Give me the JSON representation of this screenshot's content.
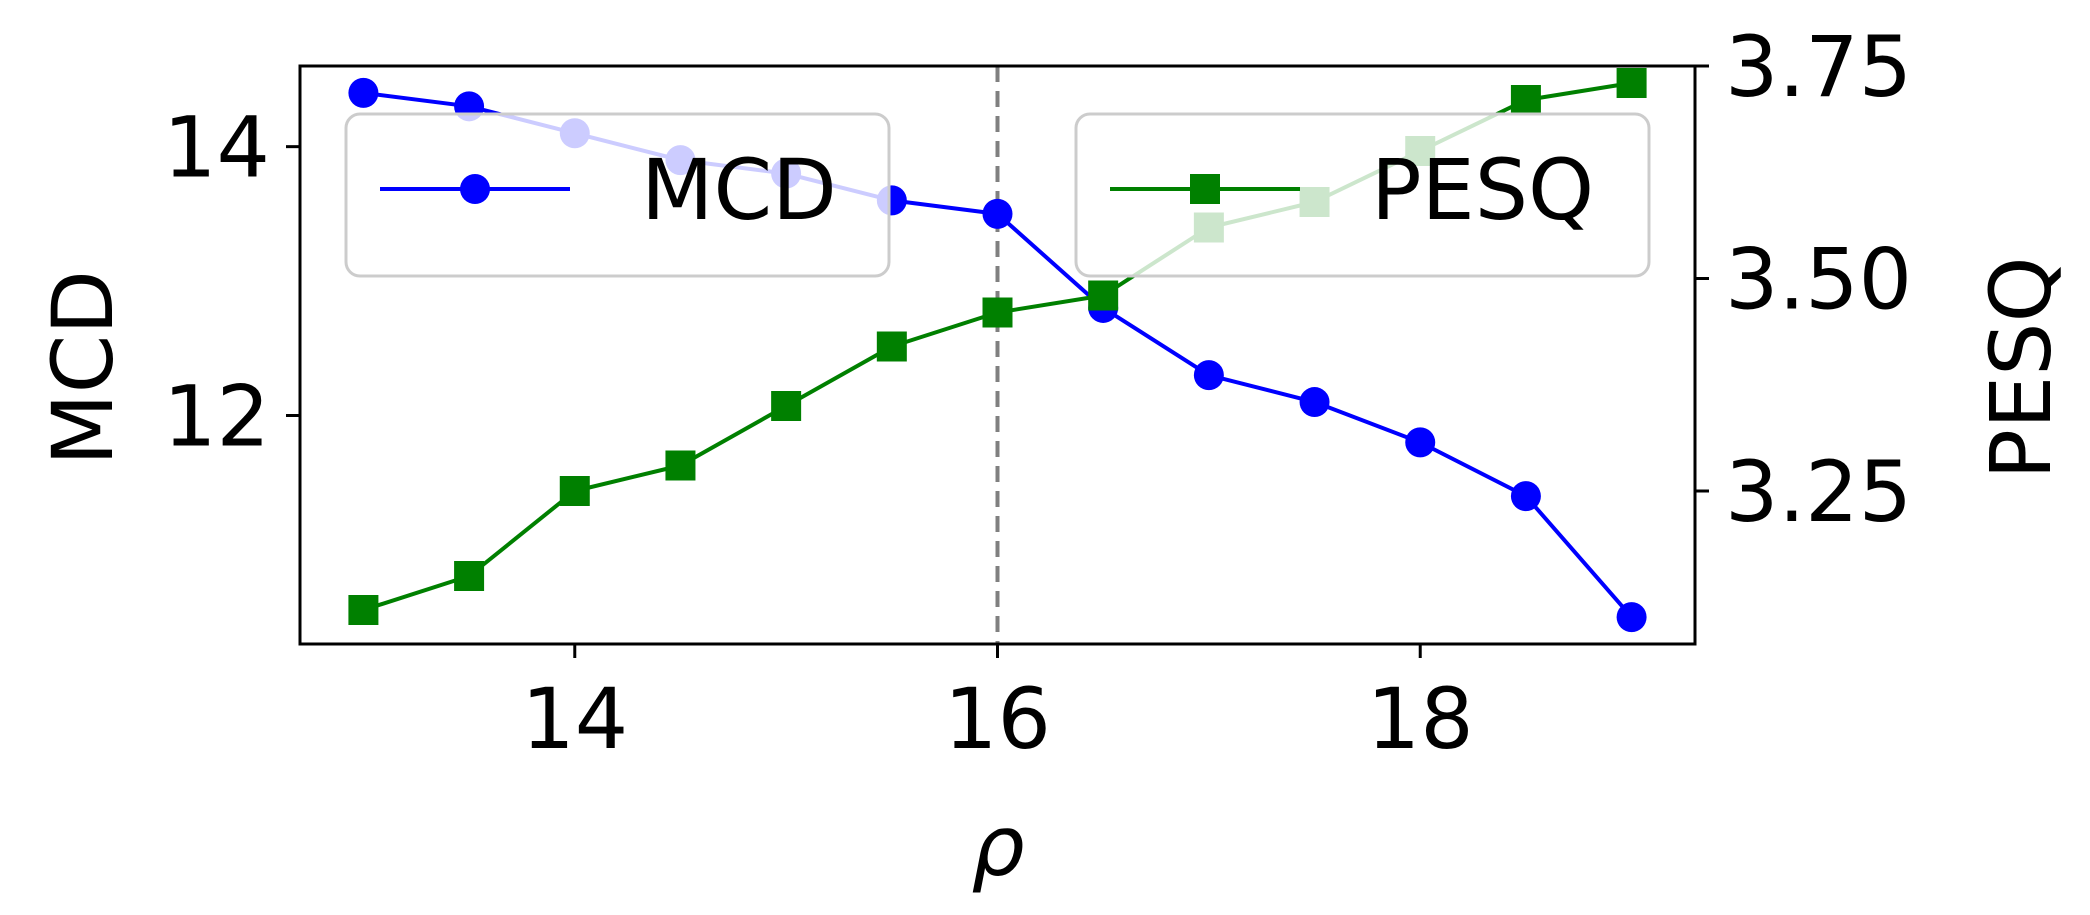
{
  "chart_data": {
    "type": "line",
    "x": [
      13,
      13.5,
      14,
      14.5,
      15,
      15.5,
      16,
      16.5,
      17,
      17.5,
      18,
      18.5,
      19
    ],
    "series": [
      {
        "name": "MCD",
        "axis": "left",
        "color": "#0000ff",
        "marker": "circle",
        "values": [
          14.4,
          14.3,
          14.1,
          13.9,
          13.8,
          13.6,
          13.5,
          12.8,
          12.3,
          12.1,
          11.8,
          11.4,
          10.5
        ]
      },
      {
        "name": "PESQ",
        "axis": "right",
        "color": "#008000",
        "marker": "square",
        "values": [
          3.11,
          3.15,
          3.25,
          3.28,
          3.35,
          3.42,
          3.46,
          3.48,
          3.56,
          3.59,
          3.65,
          3.71,
          3.73
        ]
      }
    ],
    "xlabel": "ρ",
    "ylabel_left": "MCD",
    "ylabel_right": "PESQ",
    "xlim": [
      12.7,
      19.3
    ],
    "ylim_left": [
      10.3,
      14.6
    ],
    "ylim_right": [
      3.07,
      3.75
    ],
    "xticks": [
      14,
      16,
      18
    ],
    "yticks_left": [
      12,
      14
    ],
    "yticks_right": [
      3.25,
      3.5,
      3.75
    ],
    "ytick_labels_right": [
      "3.25",
      "3.50",
      "3.75"
    ],
    "vline": {
      "x": 16,
      "style": "dashed",
      "color": "#808080"
    },
    "grid": false,
    "legends": [
      {
        "label": "MCD",
        "placement": "upper-left"
      },
      {
        "label": "PESQ",
        "placement": "upper-right"
      }
    ]
  }
}
